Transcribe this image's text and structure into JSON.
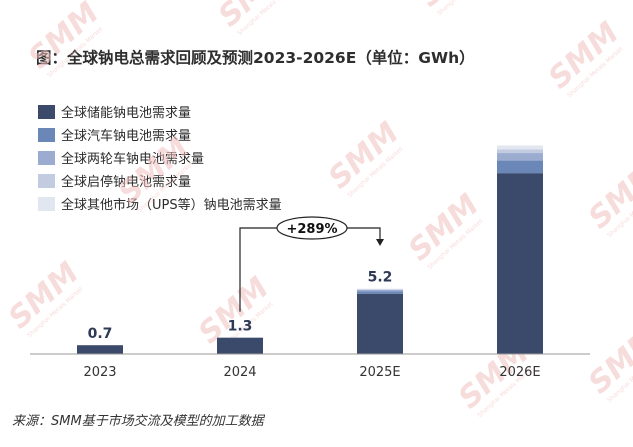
{
  "chart_data": {
    "type": "bar",
    "stacked": true,
    "title": "图：全球钠电总需求回顾及预测2023-2026E（单位：GWh）",
    "categories": [
      "2023",
      "2024",
      "2025E",
      "2026E"
    ],
    "totals": [
      0.7,
      1.3,
      5.2,
      null
    ],
    "series": [
      {
        "name": "全球储能钠电池需求量",
        "color": "#3b4a6b",
        "values": [
          0.7,
          1.3,
          4.8,
          14.4
        ]
      },
      {
        "name": "全球汽车钠电池需求量",
        "color": "#6b87b8",
        "values": [
          0,
          0,
          0.2,
          1.0
        ]
      },
      {
        "name": "全球两轮车钠电池需求量",
        "color": "#9cacd0",
        "values": [
          0,
          0,
          0.1,
          0.6
        ]
      },
      {
        "name": "全球启停钠电池需求量",
        "color": "#c3cbe1",
        "values": [
          0,
          0,
          0.06,
          0.3
        ]
      },
      {
        "name": "全球其他市场（UPS等）钠电池需求量",
        "color": "#e1e6f1",
        "values": [
          0,
          0,
          0.04,
          0.3
        ]
      }
    ],
    "annotation": {
      "text": "+289%",
      "from": "2024",
      "to": "2025E"
    },
    "ylim": [
      0,
      16.8
    ],
    "grid": false,
    "legend_position": "top-left"
  },
  "source": "来源：SMM基于市场交流及模型的加工数据",
  "watermark": "SMM Shanghai Metals Market"
}
